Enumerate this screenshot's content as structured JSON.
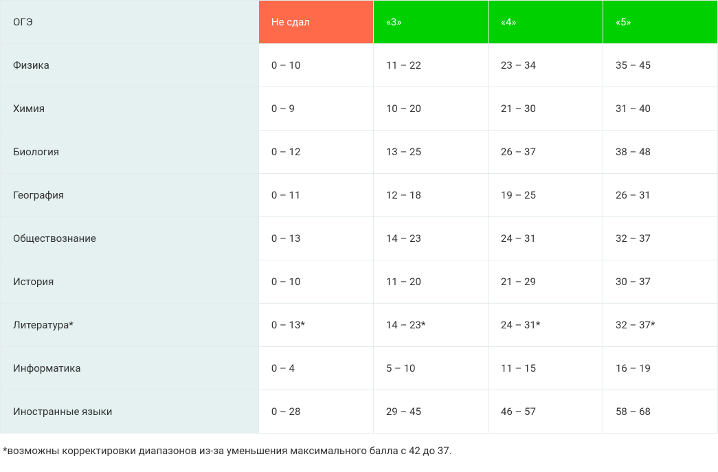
{
  "table": {
    "type": "table",
    "colors": {
      "header_fail_bg": "#ff6b4a",
      "header_grade_bg": "#00d000",
      "header_text": "#ffffff",
      "subject_col_bg": "#e4f1f0",
      "border": "#e5ebeb",
      "body_text": "#333333",
      "body_bg": "#ffffff"
    },
    "font_size": 15,
    "columns": [
      {
        "key": "subject",
        "label": "ОГЭ",
        "header_class": "header-subject"
      },
      {
        "key": "fail",
        "label": "Не сдал",
        "header_class": "header-fail"
      },
      {
        "key": "g3",
        "label": "«3»",
        "header_class": "header-grade"
      },
      {
        "key": "g4",
        "label": "«4»",
        "header_class": "header-grade"
      },
      {
        "key": "g5",
        "label": "«5»",
        "header_class": "header-grade"
      }
    ],
    "rows": [
      {
        "subject": "Физика",
        "fail": "0 – 10",
        "g3": "11 – 22",
        "g4": "23 – 34",
        "g5": "35 – 45"
      },
      {
        "subject": "Химия",
        "fail": "0 – 9",
        "g3": "10 – 20",
        "g4": "21 – 30",
        "g5": "31 – 40"
      },
      {
        "subject": "Биология",
        "fail": "0 – 12",
        "g3": "13 – 25",
        "g4": "26 – 37",
        "g5": "38 – 48"
      },
      {
        "subject": "География",
        "fail": "0 – 11",
        "g3": "12 – 18",
        "g4": "19 – 25",
        "g5": "26 – 31"
      },
      {
        "subject": "Обществознание",
        "fail": "0 – 13",
        "g3": "14 – 23",
        "g4": "24 – 31",
        "g5": "32 – 37"
      },
      {
        "subject": "История",
        "fail": "0 – 10",
        "g3": "11 – 20",
        "g4": "21 – 29",
        "g5": "30 – 37"
      },
      {
        "subject": "Литература*",
        "fail": "0 – 13*",
        "g3": "14 – 23*",
        "g4": "24 – 31*",
        "g5": "32 – 37*"
      },
      {
        "subject": "Информатика",
        "fail": "0 – 4",
        "g3": "5 – 10",
        "g4": "11 – 15",
        "g5": "16 – 19"
      },
      {
        "subject": "Иностранные языки",
        "fail": "0 – 28",
        "g3": "29 – 45",
        "g4": "46 – 57",
        "g5": "58 – 68"
      }
    ]
  },
  "footnote": "*возможны корректировки диапазонов из-за уменьшения максимального балла с 42 до 37."
}
